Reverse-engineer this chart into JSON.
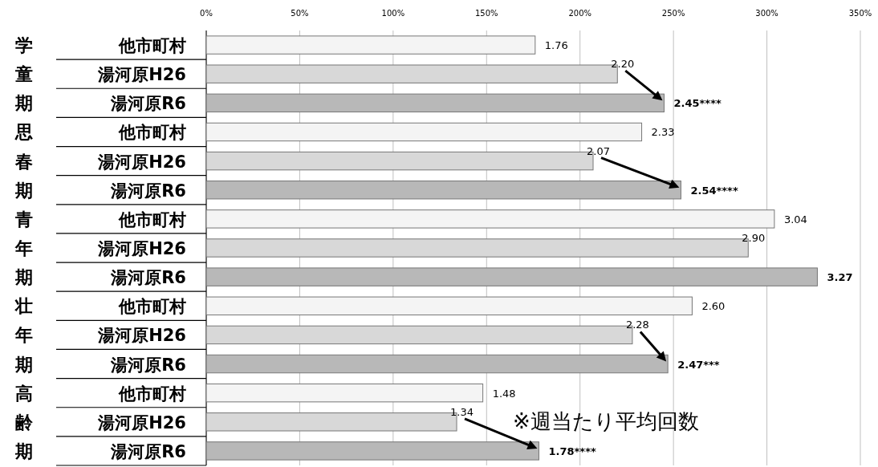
{
  "chart_data": {
    "type": "bar",
    "orientation": "horizontal",
    "categories": [
      "他市町村",
      "湯河原H26",
      "湯河原R6",
      "他市町村",
      "湯河原H26",
      "湯河原R6",
      "他市町村",
      "湯河原H26",
      "湯河原R6",
      "他市町村",
      "湯河原H26",
      "湯河原R6",
      "他市町村",
      "湯河原H26",
      "湯河原R6"
    ],
    "values": [
      1.76,
      2.2,
      2.45,
      2.33,
      2.07,
      2.54,
      3.04,
      2.9,
      3.27,
      2.6,
      2.28,
      2.47,
      1.48,
      1.34,
      1.78
    ],
    "value_labels": [
      "1.76",
      "2.20",
      "2.45****",
      "2.33",
      "2.07",
      "2.54****",
      "3.04",
      "2.90",
      "3.27",
      "2.60",
      "2.28",
      "2.47***",
      "1.48",
      "1.34",
      "1.78****"
    ],
    "colors": [
      "#f4f4f4",
      "#d8d8d8",
      "#b8b8b8",
      "#f4f4f4",
      "#d8d8d8",
      "#b8b8b8",
      "#f4f4f4",
      "#d8d8d8",
      "#b8b8b8",
      "#f4f4f4",
      "#d8d8d8",
      "#b8b8b8",
      "#f4f4f4",
      "#d8d8d8",
      "#b8b8b8"
    ],
    "xlim": [
      0,
      3.5
    ],
    "xticks": [
      {
        "value": 0,
        "label": "0%"
      },
      {
        "value": 0.5,
        "label": "50%"
      },
      {
        "value": 1,
        "label": "100%"
      },
      {
        "value": 1.5,
        "label": "150%"
      },
      {
        "value": 2,
        "label": "200%"
      },
      {
        "value": 2.5,
        "label": "250%"
      },
      {
        "value": 3,
        "label": "300%"
      },
      {
        "value": 3.5,
        "label": "350%"
      }
    ],
    "grid": "x",
    "annotations": [
      "学童期",
      "思春期",
      "青年期",
      "壮年期",
      "高齢期",
      "※週当たり平均回数"
    ]
  }
}
